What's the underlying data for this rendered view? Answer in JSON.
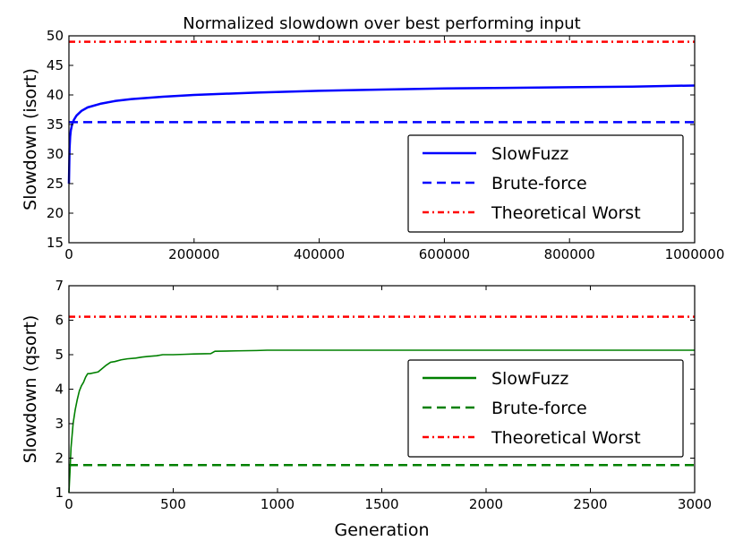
{
  "colors": {
    "slowfuzz_top": "#0000ff",
    "slowfuzz_bottom": "#008000",
    "bruteforce_top": "#0000ff",
    "bruteforce_bottom": "#008000",
    "theoretical": "#ff0000"
  },
  "chart_data": [
    {
      "type": "line",
      "title": "Normalized slowdown over best performing input",
      "xlabel": "",
      "ylabel": "Slowdown (isort)",
      "xlim": [
        0,
        1000000
      ],
      "ylim": [
        15,
        50
      ],
      "xticks": [
        0,
        200000,
        400000,
        600000,
        800000,
        1000000
      ],
      "xtick_labels": [
        "0",
        "200000",
        "400000",
        "600000",
        "800000",
        "1000000"
      ],
      "yticks": [
        15,
        20,
        25,
        30,
        35,
        40,
        45,
        50
      ],
      "ytick_labels": [
        "15",
        "20",
        "25",
        "30",
        "35",
        "40",
        "45",
        "50"
      ],
      "legend_position": "lower-right",
      "series": [
        {
          "name": "SlowFuzz",
          "style": "solid",
          "color_key": "slowfuzz_top",
          "x": [
            0,
            1000,
            2000,
            3000,
            5000,
            8000,
            12000,
            20000,
            30000,
            50000,
            75000,
            100000,
            150000,
            200000,
            300000,
            400000,
            500000,
            600000,
            700000,
            800000,
            900000,
            1000000
          ],
          "y": [
            25,
            31,
            33,
            34,
            35,
            35.8,
            36.5,
            37.3,
            37.9,
            38.5,
            39.0,
            39.3,
            39.7,
            40.0,
            40.4,
            40.7,
            40.9,
            41.1,
            41.2,
            41.3,
            41.4,
            41.6
          ]
        },
        {
          "name": "Brute-force",
          "style": "dashed",
          "color_key": "bruteforce_top",
          "x": [
            0,
            1000000
          ],
          "y": [
            35.4,
            35.4
          ]
        },
        {
          "name": "Theoretical Worst",
          "style": "dashdot",
          "color_key": "theoretical",
          "x": [
            0,
            1000000
          ],
          "y": [
            49,
            49
          ]
        }
      ]
    },
    {
      "type": "line",
      "title": "",
      "xlabel": "Generation",
      "ylabel": "Slowdown (qsort)",
      "xlim": [
        0,
        3000
      ],
      "ylim": [
        1,
        7
      ],
      "xticks": [
        0,
        500,
        1000,
        1500,
        2000,
        2500,
        3000
      ],
      "xtick_labels": [
        "0",
        "500",
        "1000",
        "1500",
        "2000",
        "2500",
        "3000"
      ],
      "yticks": [
        1,
        2,
        3,
        4,
        5,
        6,
        7
      ],
      "ytick_labels": [
        "1",
        "2",
        "3",
        "4",
        "5",
        "6",
        "7"
      ],
      "legend_position": "lower-right",
      "series": [
        {
          "name": "SlowFuzz",
          "style": "solid",
          "color_key": "slowfuzz_bottom",
          "x": [
            0,
            5,
            10,
            20,
            30,
            40,
            50,
            60,
            70,
            80,
            90,
            100,
            140,
            160,
            180,
            200,
            220,
            250,
            280,
            320,
            350,
            380,
            420,
            450,
            500,
            550,
            600,
            680,
            700,
            800,
            900,
            950,
            1000,
            1500,
            2000,
            2500,
            3000
          ],
          "y": [
            1.0,
            1.6,
            2.3,
            3.0,
            3.4,
            3.7,
            3.95,
            4.1,
            4.2,
            4.35,
            4.45,
            4.45,
            4.5,
            4.6,
            4.7,
            4.78,
            4.8,
            4.85,
            4.88,
            4.9,
            4.93,
            4.95,
            4.97,
            5.0,
            5.0,
            5.01,
            5.02,
            5.03,
            5.1,
            5.11,
            5.12,
            5.13,
            5.13,
            5.13,
            5.13,
            5.13,
            5.13
          ]
        },
        {
          "name": "Brute-force",
          "style": "dashed",
          "color_key": "bruteforce_bottom",
          "x": [
            0,
            3000
          ],
          "y": [
            1.8,
            1.8
          ]
        },
        {
          "name": "Theoretical Worst",
          "style": "dashdot",
          "color_key": "theoretical",
          "x": [
            0,
            3000
          ],
          "y": [
            6.1,
            6.1
          ]
        }
      ]
    }
  ]
}
